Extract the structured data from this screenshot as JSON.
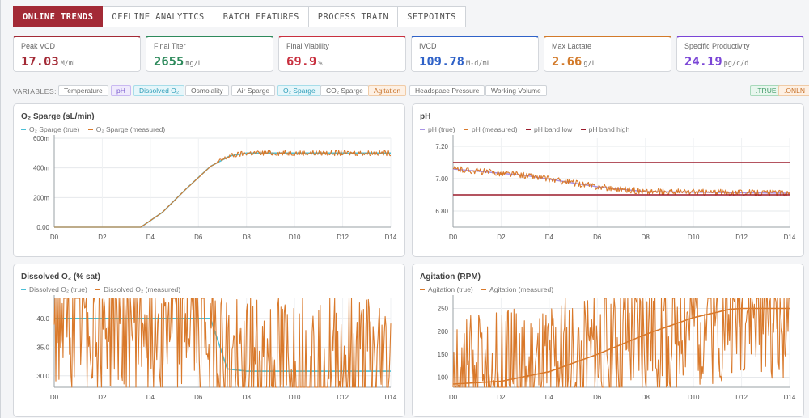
{
  "tabs": [
    {
      "label": "ONLINE TRENDS",
      "active": true
    },
    {
      "label": "OFFLINE ANALYTICS",
      "active": false
    },
    {
      "label": "BATCH FEATURES",
      "active": false
    },
    {
      "label": "PROCESS TRAIN",
      "active": false
    },
    {
      "label": "SETPOINTS",
      "active": false
    }
  ],
  "kpis": [
    {
      "label": "Peak VCD",
      "value": "17.03",
      "unit": "M/mL",
      "color": "#a32a36"
    },
    {
      "label": "Final Titer",
      "value": "2655",
      "unit": "mg/L",
      "color": "#2e8a5c"
    },
    {
      "label": "Final Viability",
      "value": "69.9",
      "unit": "%",
      "color": "#c8303f"
    },
    {
      "label": "IVCD",
      "value": "109.78",
      "unit": "M-d/mL",
      "color": "#2f62c8"
    },
    {
      "label": "Max Lactate",
      "value": "2.66",
      "unit": "g/L",
      "color": "#d27a2a"
    },
    {
      "label": "Specific Productivity",
      "value": "24.19",
      "unit": "pg/c/d",
      "color": "#7a45d6"
    }
  ],
  "variables": {
    "label": "VARIABLES:",
    "chips": [
      {
        "label": "Temperature",
        "style": "plain"
      },
      {
        "label": "pH",
        "style": "purple"
      },
      {
        "label": "Dissolved O₂",
        "style": "cyan"
      },
      {
        "label": "Osmolality",
        "style": "plain"
      },
      {
        "label": "Air Sparge",
        "style": "plain"
      },
      {
        "label": "O₂ Sparge",
        "style": "cyan"
      },
      {
        "label": "CO₂ Sparge",
        "style": "plain"
      },
      {
        "label": "Agitation",
        "style": "orange"
      },
      {
        "label": "Headspace Pressure",
        "style": "plain"
      },
      {
        "label": "Working Volume",
        "style": "plain"
      }
    ],
    "mode_chips": [
      {
        "label": ".TRUE",
        "style": "green"
      },
      {
        "label": ".ONLN",
        "style": "orange"
      }
    ]
  },
  "colors": {
    "accent": "#a32a36",
    "true_cyan": "#4bbfd6",
    "measured_orange": "#d9792b",
    "true_purple": "#a893e6",
    "band_red": "#9b1c2c"
  },
  "chart_data": [
    {
      "type": "line",
      "title": "O₂ Sparge (sL/min)",
      "x_ticks": [
        "D0",
        "D2",
        "D4",
        "D6",
        "D8",
        "D10",
        "D12",
        "D14"
      ],
      "xlim": [
        0,
        14
      ],
      "y_ticks": [
        "600m",
        "400m",
        "200m",
        "0.00"
      ],
      "ylim": [
        0,
        0.6
      ],
      "series": [
        {
          "name": "O₂ Sparge (true)",
          "color": "#4bbfd6",
          "points": [
            [
              0,
              0
            ],
            [
              3.6,
              0
            ],
            [
              4.5,
              0.1
            ],
            [
              5.5,
              0.26
            ],
            [
              6.5,
              0.41
            ],
            [
              7.3,
              0.48
            ],
            [
              8,
              0.5
            ],
            [
              14,
              0.5
            ]
          ]
        },
        {
          "name": "O₂ Sparge (measured)",
          "color": "#d9792b",
          "points": [
            [
              0,
              0
            ],
            [
              3.6,
              0
            ],
            [
              4.5,
              0.1
            ],
            [
              5.5,
              0.26
            ],
            [
              6.5,
              0.41
            ],
            [
              7.3,
              0.48
            ],
            [
              8,
              0.5
            ],
            [
              14,
              0.5
            ]
          ],
          "noise": 0.03,
          "noise_from": 6.8
        }
      ]
    },
    {
      "type": "line",
      "title": "pH",
      "x_ticks": [
        "D0",
        "D2",
        "D4",
        "D6",
        "D8",
        "D10",
        "D12",
        "D14"
      ],
      "xlim": [
        0,
        14
      ],
      "y_ticks": [
        "7.20",
        "7.00",
        "6.80"
      ],
      "ylim": [
        6.7,
        7.25
      ],
      "series": [
        {
          "name": "pH (true)",
          "color": "#a893e6",
          "points": [
            [
              0,
              7.06
            ],
            [
              3,
              7.02
            ],
            [
              6,
              6.95
            ],
            [
              8,
              6.92
            ],
            [
              14,
              6.91
            ]
          ]
        },
        {
          "name": "pH (measured)",
          "color": "#d9792b",
          "points": [
            [
              0,
              7.06
            ],
            [
              3,
              7.02
            ],
            [
              6,
              6.95
            ],
            [
              8,
              6.92
            ],
            [
              14,
              6.91
            ]
          ],
          "noise": 0.035,
          "noise_from": 0
        },
        {
          "name": "pH band low",
          "color": "#9b1c2c",
          "points": [
            [
              0,
              6.9
            ],
            [
              14,
              6.9
            ]
          ]
        },
        {
          "name": "pH band high",
          "color": "#9b1c2c",
          "points": [
            [
              0,
              7.1
            ],
            [
              14,
              7.1
            ]
          ]
        }
      ]
    },
    {
      "type": "line",
      "title": "Dissolved O₂ (% sat)",
      "x_ticks": [
        "D0",
        "D2",
        "D4",
        "D6",
        "D8",
        "D10",
        "D12",
        "D14"
      ],
      "xlim": [
        0,
        14
      ],
      "y_ticks": [
        "40.0",
        "35.0",
        "30.0"
      ],
      "ylim": [
        28,
        43.5
      ],
      "series": [
        {
          "name": "Dissolved O₂ (true)",
          "color": "#4bbfd6",
          "points": [
            [
              0,
              40
            ],
            [
              6.5,
              40
            ],
            [
              6.9,
              35
            ],
            [
              7.2,
              31.2
            ],
            [
              8,
              30.8
            ],
            [
              14,
              30.8
            ]
          ]
        },
        {
          "name": "Dissolved O₂ (measured)",
          "color": "#d9792b",
          "points": [
            [
              0,
              40
            ],
            [
              6.5,
              40
            ],
            [
              6.9,
              35
            ],
            [
              7.2,
              31.2
            ],
            [
              8,
              30.8
            ],
            [
              14,
              30.8
            ]
          ],
          "noise": 0.9,
          "noise_from": 0
        }
      ]
    },
    {
      "type": "line",
      "title": "Agitation (RPM)",
      "x_ticks": [
        "D0",
        "D2",
        "D4",
        "D6",
        "D8",
        "D10",
        "D12",
        "D14"
      ],
      "xlim": [
        0,
        14
      ],
      "y_ticks": [
        "250",
        "200",
        "150",
        "100"
      ],
      "ylim": [
        78,
        272
      ],
      "series": [
        {
          "name": "Agitation (true)",
          "color": "#d9792b",
          "points": [
            [
              0,
              85
            ],
            [
              2,
              91
            ],
            [
              4,
              112
            ],
            [
              6,
              150
            ],
            [
              8,
              193
            ],
            [
              10,
              230
            ],
            [
              11.5,
              248
            ],
            [
              12,
              250
            ],
            [
              14,
              250
            ]
          ]
        },
        {
          "name": "Agitation (measured)",
          "color": "#d9792b",
          "points": [
            [
              0,
              85
            ],
            [
              2,
              91
            ],
            [
              4,
              112
            ],
            [
              6,
              150
            ],
            [
              8,
              193
            ],
            [
              10,
              230
            ],
            [
              11.5,
              248
            ],
            [
              12,
              250
            ],
            [
              14,
              250
            ]
          ],
          "noise": 0.8,
          "noise_from": 0
        }
      ]
    }
  ]
}
